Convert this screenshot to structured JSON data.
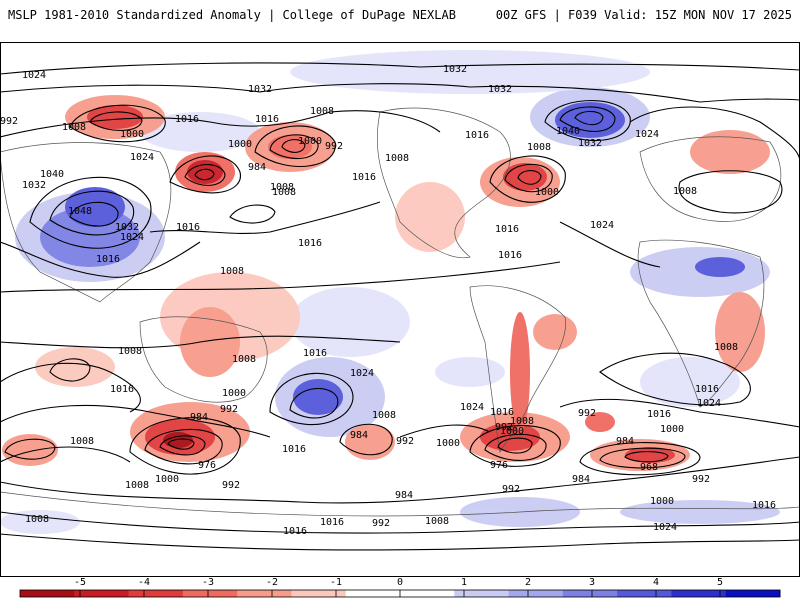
{
  "header": {
    "title": "MSLP 1981-2010 Standardized Anomaly | College of DuPage NEXLAB",
    "run_info": "00Z GFS | F039 Valid: 15Z MON NOV 17 2025"
  },
  "isobar_labels": [
    "1024",
    "1032",
    "1032",
    "1032",
    "992",
    "1008",
    "1000",
    "1016",
    "1008",
    "1000",
    "992",
    "984",
    "1024",
    "1000",
    "1008",
    "1016",
    "1008",
    "1032",
    "1040",
    "1048",
    "1032",
    "1024",
    "1016",
    "1016",
    "1008",
    "1016",
    "1016",
    "1040",
    "1032",
    "1024",
    "1000",
    "1016",
    "1008",
    "1016",
    "1016",
    "1024",
    "1008",
    "1008",
    "1008",
    "1008",
    "1008",
    "1000",
    "992",
    "984",
    "976",
    "1016",
    "1024",
    "1016",
    "1024",
    "1016",
    "1000",
    "992",
    "1008",
    "1016",
    "1008",
    "1000",
    "992",
    "984",
    "992",
    "984",
    "976",
    "992",
    "968",
    "984",
    "992",
    "1000",
    "1016",
    "1024",
    "1016",
    "1000",
    "1008",
    "1016",
    "1008",
    "1016",
    "1008",
    "984",
    "992",
    "1016",
    "992",
    "1000",
    "1008",
    "1024",
    "1008"
  ],
  "colorbar": {
    "ticks": [
      "-5",
      "-4",
      "-3",
      "-2",
      "-1",
      "0",
      "1",
      "2",
      "3",
      "4",
      "5"
    ],
    "colors": [
      "#a50f15",
      "#c81d25",
      "#e03c3c",
      "#ef6a5f",
      "#f79b8b",
      "#fcc8bd",
      "#ffffff",
      "#ffffff",
      "#c9cbf3",
      "#a3a7ee",
      "#7c80e4",
      "#5459da",
      "#2c31ce",
      "#0a10c0"
    ]
  }
}
